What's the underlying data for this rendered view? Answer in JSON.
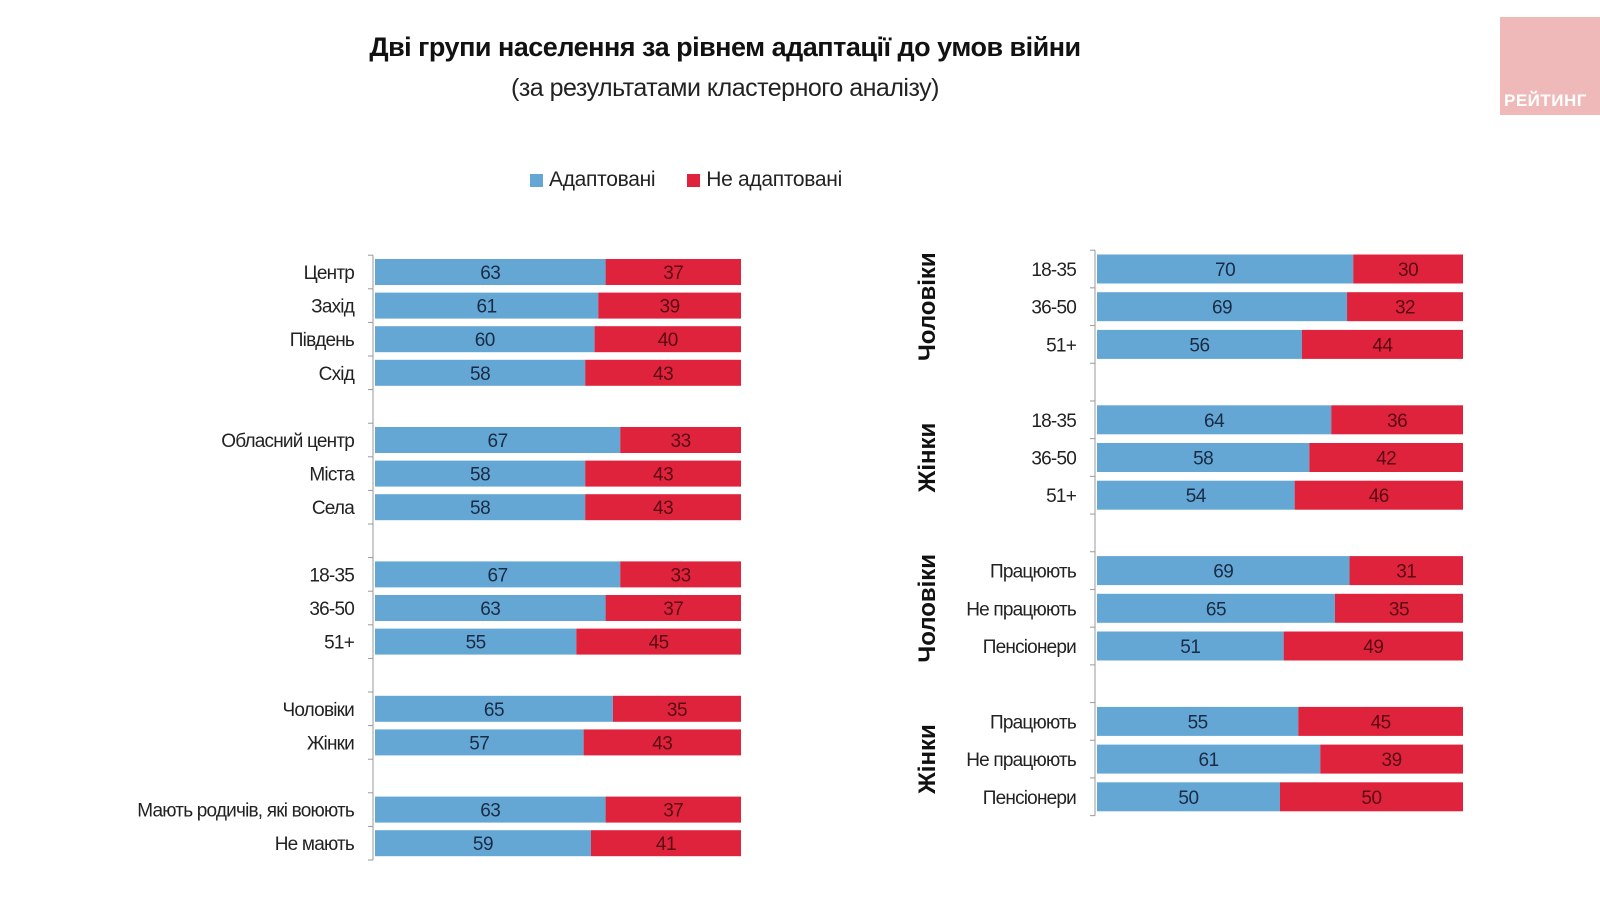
{
  "chart_data": [
    {
      "type": "bar",
      "orientation": "horizontal",
      "stacked": true,
      "title": "Дві групи населення за рівнем адаптації до умов війни",
      "subtitle": "(за результатами кластерного аналізу)",
      "legend": {
        "placement": "top",
        "entries": [
          "Адаптовані",
          "Не адаптовані"
        ]
      },
      "colors": {
        "Адаптовані": "#64a7d5",
        "Не адаптовані": "#e0233d"
      },
      "groups": [
        {
          "rows": [
            {
              "label": "Центр",
              "values": [
                63,
                37
              ]
            },
            {
              "label": "Захід",
              "values": [
                61,
                39
              ]
            },
            {
              "label": "Південь",
              "values": [
                60,
                40
              ]
            },
            {
              "label": "Схід",
              "values": [
                58,
                43
              ]
            }
          ]
        },
        {
          "rows": [
            {
              "label": "Обласний центр",
              "values": [
                67,
                33
              ]
            },
            {
              "label": "Міста",
              "values": [
                58,
                43
              ]
            },
            {
              "label": "Села",
              "values": [
                58,
                43
              ]
            }
          ]
        },
        {
          "rows": [
            {
              "label": "18-35",
              "values": [
                67,
                33
              ]
            },
            {
              "label": "36-50",
              "values": [
                63,
                37
              ]
            },
            {
              "label": "51+",
              "values": [
                55,
                45
              ]
            }
          ]
        },
        {
          "rows": [
            {
              "label": "Чоловіки",
              "values": [
                65,
                35
              ]
            },
            {
              "label": "Жінки",
              "values": [
                57,
                43
              ]
            }
          ]
        },
        {
          "rows": [
            {
              "label": "Мають родичів, які воюють",
              "values": [
                63,
                37
              ]
            },
            {
              "label": "Не мають",
              "values": [
                59,
                41
              ]
            }
          ]
        }
      ]
    },
    {
      "type": "bar",
      "orientation": "horizontal",
      "stacked": true,
      "groups": [
        {
          "group_label": "Чоловіки",
          "rows": [
            {
              "label": "18-35",
              "values": [
                70,
                30
              ]
            },
            {
              "label": "36-50",
              "values": [
                69,
                32
              ]
            },
            {
              "label": "51+",
              "values": [
                56,
                44
              ]
            }
          ]
        },
        {
          "group_label": "Жінки",
          "rows": [
            {
              "label": "18-35",
              "values": [
                64,
                36
              ]
            },
            {
              "label": "36-50",
              "values": [
                58,
                42
              ]
            },
            {
              "label": "51+",
              "values": [
                54,
                46
              ]
            }
          ]
        },
        {
          "group_label": "Чоловіки",
          "rows": [
            {
              "label": "Працюють",
              "values": [
                69,
                31
              ]
            },
            {
              "label": "Не працюють",
              "values": [
                65,
                35
              ]
            },
            {
              "label": "Пенсіонери",
              "values": [
                51,
                49
              ]
            }
          ]
        },
        {
          "group_label": "Жінки",
          "rows": [
            {
              "label": "Працюють",
              "values": [
                55,
                45
              ]
            },
            {
              "label": "Не працюють",
              "values": [
                61,
                39
              ]
            },
            {
              "label": "Пенсіонери",
              "values": [
                50,
                50
              ]
            }
          ]
        }
      ]
    }
  ],
  "header": {
    "title": "Дві групи населення за рівнем адаптації до умов війни",
    "subtitle": "(за результатами кластерного аналізу)"
  },
  "legend": {
    "adapted": "Адаптовані",
    "not_adapted": "Не адаптовані"
  },
  "logo": {
    "text": "РЕЙТИНГ"
  }
}
